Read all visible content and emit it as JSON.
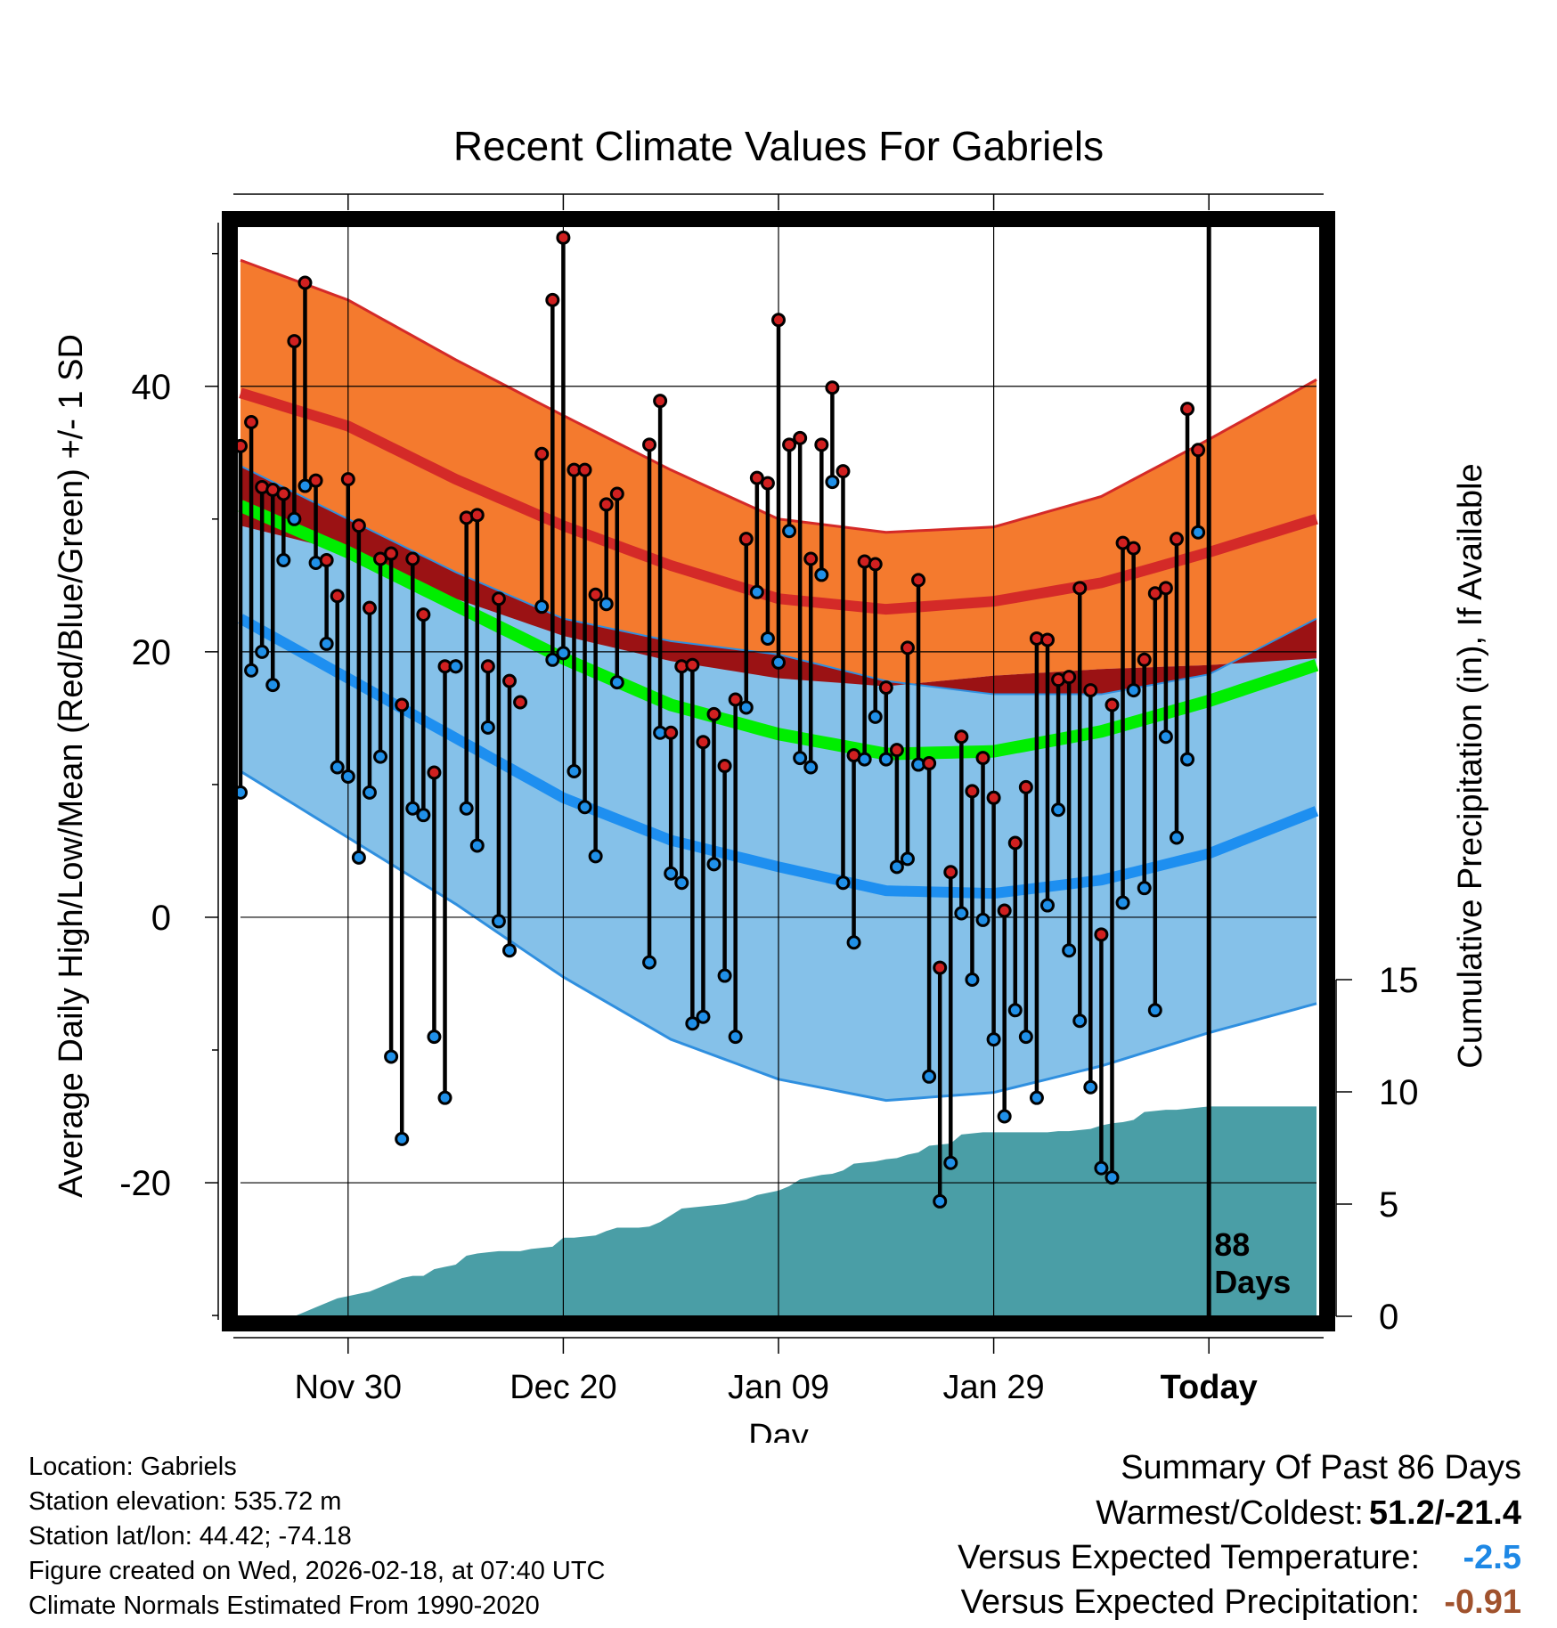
{
  "chart_data": {
    "type": "line",
    "title": "Recent Climate Values For Gabriels",
    "xlabel": "Day",
    "ylabel_left": "Average Daily High/Low/Mean (Red/Blue/Green) +/- 1 SD",
    "ylabel_right": "Cumulative Precipitation (in), If Available",
    "x_ticks": [
      {
        "day": 10,
        "label": "Nov 30"
      },
      {
        "day": 30,
        "label": "Dec 20"
      },
      {
        "day": 50,
        "label": "Jan 09"
      },
      {
        "day": 70,
        "label": "Jan 29"
      },
      {
        "day": 90,
        "label": "Today"
      }
    ],
    "xlim": [
      0,
      100
    ],
    "ylim_left": [
      -31,
      53
    ],
    "y_ticks_left": [
      -20,
      0,
      20,
      40
    ],
    "ylim_right": [
      0,
      17
    ],
    "y_ticks_right": [
      0,
      5,
      10,
      15
    ],
    "today_day": 90,
    "today_label": [
      "88",
      "Days"
    ],
    "normals": {
      "high_mean": [
        [
          0,
          39.5
        ],
        [
          10,
          37
        ],
        [
          20,
          33
        ],
        [
          30,
          29.5
        ],
        [
          40,
          26.5
        ],
        [
          50,
          24
        ],
        [
          60,
          23.2
        ],
        [
          70,
          23.8
        ],
        [
          80,
          25.2
        ],
        [
          90,
          27.5
        ],
        [
          100,
          30
        ]
      ],
      "high_sd": [
        [
          0,
          10
        ],
        [
          10,
          9.5
        ],
        [
          20,
          9
        ],
        [
          30,
          8.3
        ],
        [
          40,
          7.2
        ],
        [
          50,
          6
        ],
        [
          60,
          5.8
        ],
        [
          70,
          5.6
        ],
        [
          80,
          6.5
        ],
        [
          90,
          8.5
        ],
        [
          100,
          10.5
        ]
      ],
      "low_mean": [
        [
          0,
          22.5
        ],
        [
          10,
          18
        ],
        [
          20,
          13.5
        ],
        [
          30,
          9
        ],
        [
          40,
          5.8
        ],
        [
          50,
          3.8
        ],
        [
          60,
          2
        ],
        [
          70,
          1.8
        ],
        [
          80,
          2.8
        ],
        [
          90,
          4.8
        ],
        [
          100,
          8
        ]
      ],
      "low_sd": [
        [
          0,
          11.5
        ],
        [
          10,
          12
        ],
        [
          20,
          12.5
        ],
        [
          30,
          13.5
        ],
        [
          40,
          15
        ],
        [
          50,
          16
        ],
        [
          60,
          15.8
        ],
        [
          70,
          15
        ],
        [
          80,
          14
        ],
        [
          90,
          13.5
        ],
        [
          100,
          14.5
        ]
      ],
      "avg_mean": [
        [
          0,
          31
        ],
        [
          10,
          27.5
        ],
        [
          20,
          23.5
        ],
        [
          30,
          19.5
        ],
        [
          40,
          16
        ],
        [
          50,
          13.8
        ],
        [
          60,
          12.3
        ],
        [
          70,
          12.5
        ],
        [
          80,
          14
        ],
        [
          90,
          16.3
        ],
        [
          100,
          19
        ]
      ]
    },
    "series": [
      {
        "name": "Daily high",
        "color": "#d02020",
        "values": [
          35.5,
          37.3,
          32.4,
          32.2,
          31.9,
          43.4,
          47.8,
          32.9,
          26.9,
          24.2,
          33.0,
          29.5,
          23.3,
          27.0,
          27.4,
          16.0,
          27.0,
          22.8,
          10.9,
          18.9,
          18.9,
          30.1,
          30.3,
          18.9,
          24.0,
          17.8,
          16.2,
          null,
          34.9,
          46.5,
          51.2,
          33.7,
          33.7,
          24.3,
          31.1,
          31.9,
          null,
          null,
          35.6,
          38.9,
          13.9,
          18.9,
          19.0,
          13.2,
          15.3,
          11.4,
          16.4,
          28.5,
          33.1,
          32.7,
          45.0,
          35.6,
          36.1,
          27.0,
          35.6,
          39.9,
          33.6,
          12.2,
          26.8,
          26.6,
          17.3,
          12.6,
          20.3,
          25.4,
          11.6,
          -3.8,
          3.4,
          13.6,
          9.5,
          12.0,
          9.0,
          0.5,
          5.6,
          9.8,
          21.0,
          20.9,
          17.9,
          18.1,
          24.8,
          17.1,
          -1.3,
          16.0,
          28.2,
          27.8,
          19.4,
          24.4,
          24.8,
          28.5,
          38.3,
          35.2
        ]
      },
      {
        "name": "Daily low",
        "color": "#2090e8",
        "values": [
          9.4,
          18.6,
          20.0,
          17.5,
          26.9,
          30.0,
          32.5,
          26.7,
          20.6,
          11.3,
          10.6,
          4.5,
          9.4,
          12.1,
          -10.5,
          -16.7,
          8.2,
          7.7,
          -9.0,
          -13.6,
          18.9,
          8.2,
          5.4,
          14.3,
          -0.3,
          -2.5,
          null,
          null,
          23.4,
          19.4,
          19.9,
          11.0,
          8.3,
          4.6,
          23.6,
          17.7,
          null,
          null,
          -3.4,
          13.9,
          3.3,
          2.6,
          -8.0,
          -7.5,
          4.0,
          -4.4,
          -9.0,
          15.8,
          24.5,
          21.0,
          19.2,
          29.1,
          12.0,
          11.3,
          25.8,
          32.8,
          2.6,
          -1.9,
          11.9,
          15.1,
          11.9,
          3.8,
          4.4,
          11.5,
          -12.0,
          -21.4,
          -18.5,
          0.3,
          -4.7,
          -0.2,
          -9.2,
          -15.0,
          -7.0,
          -9.0,
          -13.6,
          0.9,
          8.1,
          -2.5,
          -7.8,
          -12.8,
          -18.9,
          -19.6,
          1.1,
          17.1,
          2.2,
          -7.0,
          13.6,
          6.0,
          11.9,
          29.0
        ]
      },
      {
        "name": "Cumulative precipitation (in)",
        "color": "#4a9ea6",
        "values": [
          0,
          0,
          0,
          0,
          0,
          0,
          0.2,
          0.4,
          0.6,
          0.8,
          0.9,
          1.0,
          1.1,
          1.3,
          1.5,
          1.7,
          1.8,
          1.8,
          2.1,
          2.2,
          2.3,
          2.7,
          2.8,
          2.85,
          2.9,
          2.9,
          2.9,
          3.0,
          3.05,
          3.1,
          3.5,
          3.5,
          3.55,
          3.6,
          3.8,
          3.95,
          3.95,
          3.95,
          4.0,
          4.2,
          4.5,
          4.8,
          4.85,
          4.9,
          4.95,
          5.0,
          5.1,
          5.2,
          5.4,
          5.5,
          5.6,
          5.8,
          6.1,
          6.2,
          6.3,
          6.35,
          6.5,
          6.8,
          6.85,
          6.9,
          7.0,
          7.05,
          7.2,
          7.3,
          7.6,
          7.65,
          7.7,
          8.1,
          8.15,
          8.2,
          8.2,
          8.2,
          8.2,
          8.2,
          8.2,
          8.2,
          8.25,
          8.25,
          8.3,
          8.35,
          8.5,
          8.6,
          8.65,
          8.75,
          9.1,
          9.15,
          9.2,
          9.2,
          9.25,
          9.3,
          9.35,
          9.35,
          9.35,
          9.35,
          9.35,
          9.35,
          9.35,
          9.35,
          9.35,
          9.35,
          9.35
        ]
      }
    ]
  },
  "footer": {
    "location": "Location: Gabriels",
    "elevation": "Station elevation: 535.72 m",
    "latlon": "Station lat/lon: 44.42; -74.18",
    "created": "Figure created on Wed, 2026-02-18, at 07:40 UTC",
    "normals": "Climate Normals Estimated From 1990-2020"
  },
  "summary": {
    "title": "Summary Of Past 86 Days",
    "warm_cold_label": "Warmest/Coldest:",
    "warm_cold_value": "51.2/-21.4",
    "temp_label": "Versus Expected Temperature:",
    "temp_value": "-2.5",
    "temp_color": "#1e88e5",
    "precip_label": "Versus Expected Precipitation:",
    "precip_value": "-0.91",
    "precip_color": "#a0522d"
  }
}
